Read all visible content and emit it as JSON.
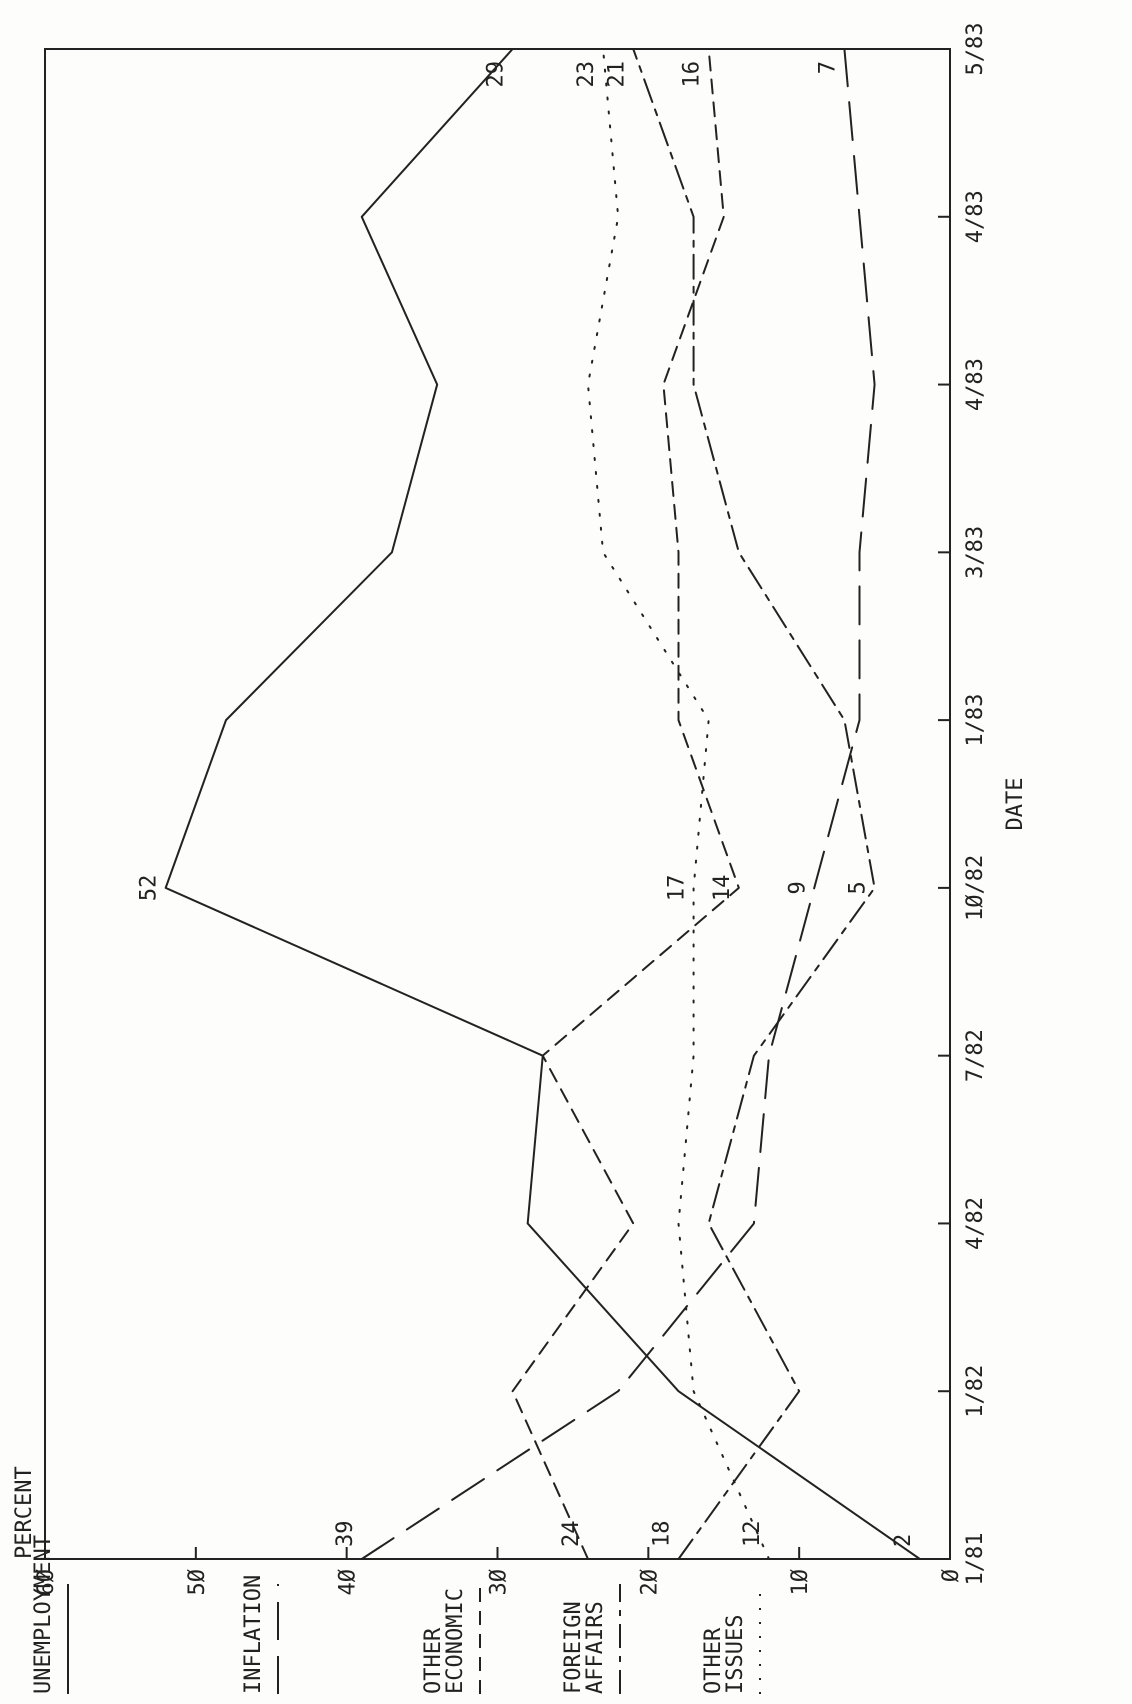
{
  "chart_data": {
    "type": "line",
    "ylabel": "PERCENT",
    "xlabel": "DATE",
    "ylim": [
      0,
      60
    ],
    "yticks": [
      "Ø",
      "1Ø",
      "2Ø",
      "3Ø",
      "4Ø",
      "5Ø",
      "6Ø"
    ],
    "categories": [
      "1/81",
      "1/82",
      "4/82",
      "7/82",
      "1Ø/82",
      "1/83",
      "3/83",
      "4/83",
      "4/83",
      "5/83"
    ],
    "grid": false,
    "legend_position": "left",
    "series": [
      {
        "name": "UNEMPLOYMENT",
        "style": "solid",
        "values": [
          2,
          18,
          28,
          27,
          52,
          48,
          37,
          34,
          39,
          29
        ]
      },
      {
        "name": "INFLATION",
        "style": "long-dash",
        "values": [
          39,
          22,
          13,
          12,
          9,
          6,
          6,
          5,
          6,
          7
        ]
      },
      {
        "name": "OTHER ECONOMIC",
        "style": "dashed",
        "values": [
          24,
          29,
          21,
          27,
          14,
          18,
          18,
          19,
          15,
          16
        ]
      },
      {
        "name": "FOREIGN AFFAIRS",
        "style": "dash-dot",
        "values": [
          18,
          10,
          16,
          13,
          5,
          7,
          14,
          17,
          17,
          21
        ]
      },
      {
        "name": "OTHER ISSUES",
        "style": "dotted",
        "values": [
          12,
          17,
          18,
          17,
          17,
          16,
          23,
          24,
          22,
          23
        ]
      }
    ],
    "annotations": [
      {
        "series": 0,
        "index": 0,
        "text": "2"
      },
      {
        "series": 0,
        "index": 4,
        "text": "52"
      },
      {
        "series": 0,
        "index": 9,
        "text": "29"
      },
      {
        "series": 1,
        "index": 0,
        "text": "39"
      },
      {
        "series": 1,
        "index": 4,
        "text": "9"
      },
      {
        "series": 1,
        "index": 9,
        "text": "7"
      },
      {
        "series": 2,
        "index": 0,
        "text": "24"
      },
      {
        "series": 2,
        "index": 4,
        "text": "14"
      },
      {
        "series": 2,
        "index": 9,
        "text": "16"
      },
      {
        "series": 3,
        "index": 0,
        "text": "18"
      },
      {
        "series": 3,
        "index": 4,
        "text": "5"
      },
      {
        "series": 3,
        "index": 9,
        "text": "21"
      },
      {
        "series": 4,
        "index": 0,
        "text": "12"
      },
      {
        "series": 4,
        "index": 4,
        "text": "17"
      },
      {
        "series": 4,
        "index": 9,
        "text": "23"
      }
    ]
  }
}
